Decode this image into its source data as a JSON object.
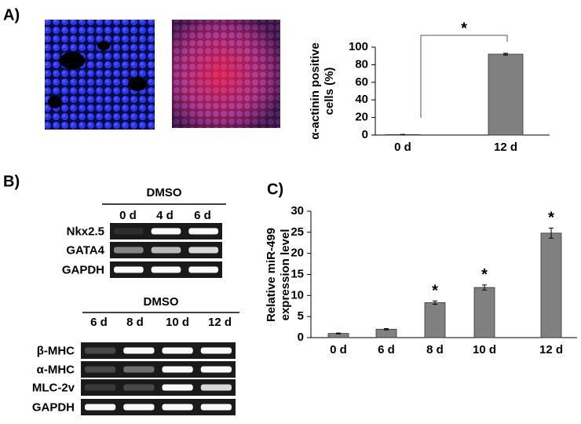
{
  "panel_labels": [
    "A)",
    "B)",
    "C)"
  ],
  "gels": [
    {
      "header": "DMSO",
      "lanes": [
        "0 d",
        "4 d",
        "6 d"
      ],
      "rows": [
        "Nkx2.5",
        "GATA4",
        "GAPDH"
      ]
    },
    {
      "header": "DMSO",
      "lanes": [
        "6 d",
        "8 d",
        "10 d",
        "12 d"
      ],
      "rows": [
        "β-MHC",
        "α-MHC",
        "MLC-2v",
        "GAPDH"
      ]
    }
  ],
  "chart_data": [
    {
      "type": "bar",
      "ylabel": [
        "α-actinin positive",
        "cells (%)"
      ],
      "categories": [
        "0 d",
        "12 d"
      ],
      "values": [
        0.5,
        92
      ],
      "errors": [
        0.3,
        1
      ],
      "color": "#808080",
      "ylim": [
        0,
        100
      ],
      "yticks": [
        0,
        20,
        40,
        60,
        80,
        100
      ],
      "significance": "*"
    },
    {
      "type": "bar",
      "ylabel": [
        "Relative miR-499",
        "expression level"
      ],
      "categories": [
        "0 d",
        "6 d",
        "8 d",
        "10 d",
        "12 d"
      ],
      "values": [
        1,
        2,
        8.3,
        11.9,
        24.8
      ],
      "errors": [
        0.1,
        0.15,
        0.4,
        0.6,
        1.2
      ],
      "markers": [
        null,
        null,
        "*",
        "*",
        "*"
      ],
      "color": "#808080",
      "ylim": [
        0,
        30
      ],
      "yticks": [
        0,
        5,
        10,
        15,
        20,
        25,
        30
      ]
    }
  ]
}
